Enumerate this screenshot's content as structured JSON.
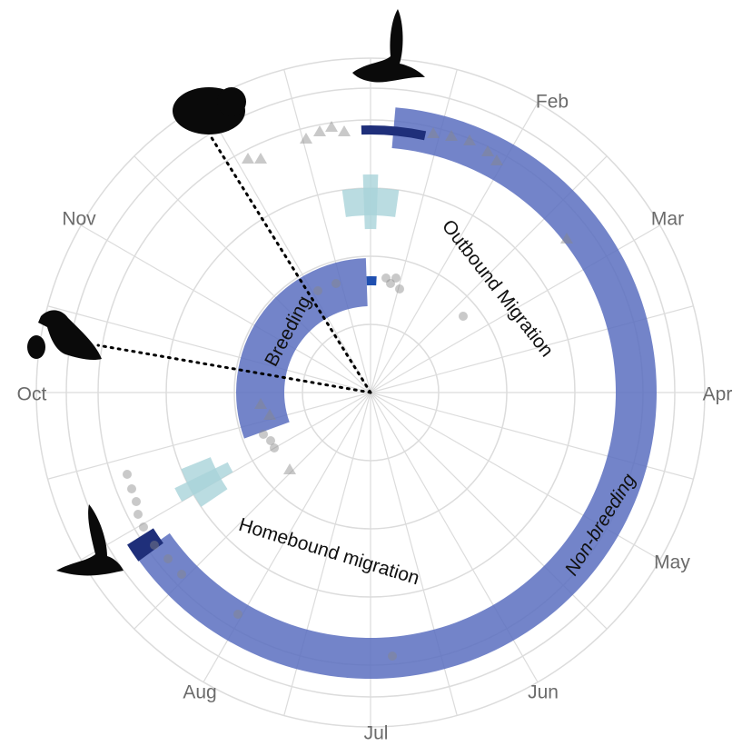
{
  "months": [
    "Feb",
    "Mar",
    "Apr",
    "May",
    "Jun",
    "Jul",
    "Aug",
    "Oct",
    "Nov"
  ],
  "phases": {
    "outbound": "Outbound Migration",
    "non_breeding": "Non-breeding",
    "homebound": "Homebound migration",
    "breeding": "Breeding"
  }
}
